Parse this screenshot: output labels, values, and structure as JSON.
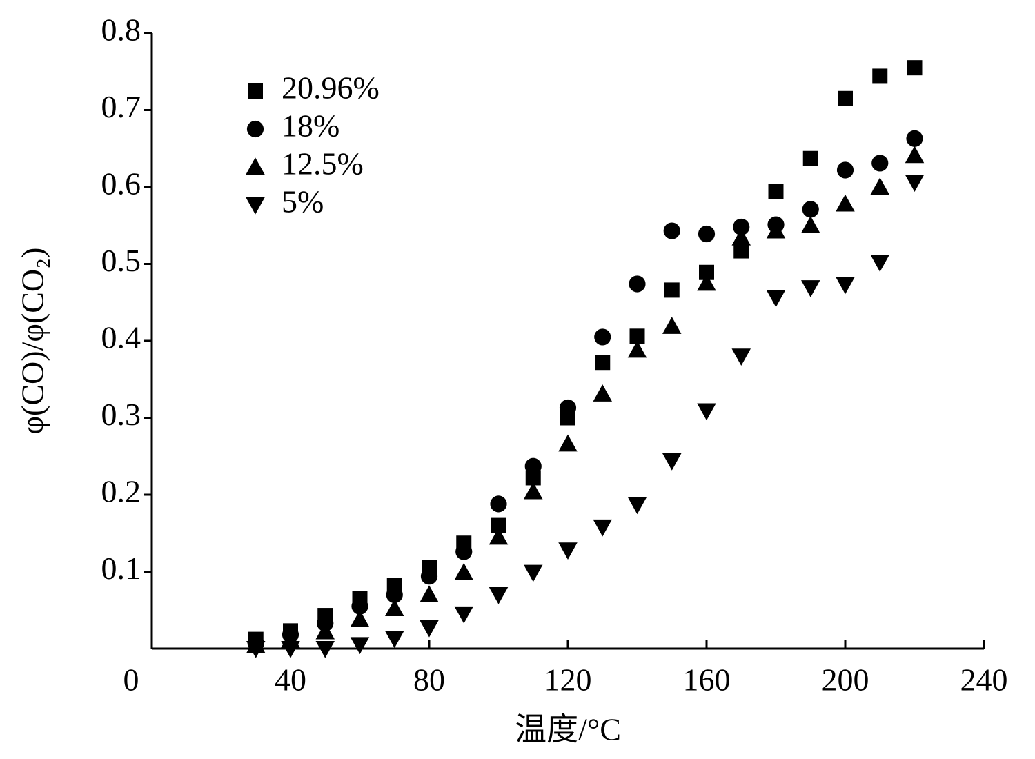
{
  "chart_data": {
    "type": "scatter",
    "x_label": "温度/°C",
    "y_label": "φ(CO)/φ(CO₂)",
    "x": [
      30,
      40,
      50,
      60,
      70,
      80,
      90,
      100,
      110,
      120,
      130,
      140,
      150,
      160,
      170,
      180,
      190,
      200,
      210,
      220
    ],
    "series": [
      {
        "name": "20.96%",
        "color": "#000000",
        "marker": "square",
        "values": [
          0.012,
          0.023,
          0.043,
          0.065,
          0.082,
          0.105,
          0.137,
          0.16,
          0.222,
          0.3,
          0.372,
          0.406,
          0.466,
          0.489,
          0.517,
          0.594,
          0.637,
          0.715,
          0.744,
          0.755
        ]
      },
      {
        "name": "18%",
        "color": "#000000",
        "marker": "circle",
        "values": [
          0.007,
          0.018,
          0.033,
          0.055,
          0.07,
          0.094,
          0.126,
          0.188,
          0.237,
          0.313,
          0.405,
          0.474,
          0.543,
          0.539,
          0.548,
          0.551,
          0.571,
          0.622,
          0.631,
          0.663
        ]
      },
      {
        "name": "12.5%",
        "color": "#000000",
        "marker": "triangle",
        "values": [
          0.004,
          0.011,
          0.022,
          0.038,
          0.052,
          0.07,
          0.099,
          0.145,
          0.204,
          0.266,
          0.331,
          0.388,
          0.419,
          0.475,
          0.534,
          0.543,
          0.55,
          0.578,
          0.6,
          0.641
        ]
      },
      {
        "name": "5%",
        "color": "#000000",
        "marker": "triangle-down",
        "values": [
          0.0,
          0.0,
          0.0,
          0.005,
          0.013,
          0.027,
          0.045,
          0.07,
          0.099,
          0.128,
          0.158,
          0.187,
          0.244,
          0.309,
          0.38,
          0.456,
          0.469,
          0.473,
          0.502,
          0.606
        ]
      }
    ],
    "xlim": [
      0,
      240
    ],
    "xticks": [
      0,
      40,
      80,
      120,
      160,
      200,
      240
    ],
    "ylim": [
      0,
      0.8
    ],
    "yticks": [
      0.1,
      0.2,
      0.3,
      0.4,
      0.5,
      0.6,
      0.7,
      0.8
    ],
    "legend": "upper-left",
    "grid": false
  }
}
